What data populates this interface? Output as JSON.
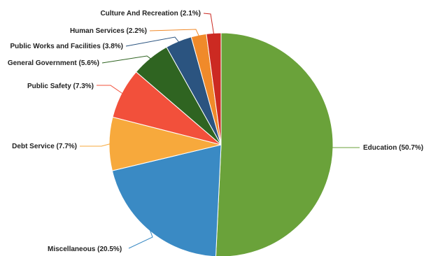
{
  "chart_data": {
    "type": "pie",
    "slices": [
      {
        "label": "Education",
        "value": 50.7,
        "display": "Education (50.7%)",
        "color": "#6aa23a"
      },
      {
        "label": "Miscellaneous",
        "value": 20.5,
        "display": "Miscellaneous (20.5%)",
        "color": "#3a8ac4"
      },
      {
        "label": "Debt Service",
        "value": 7.7,
        "display": "Debt Service (7.7%)",
        "color": "#f7a93c"
      },
      {
        "label": "Public Safety",
        "value": 7.3,
        "display": "Public Safety (7.3%)",
        "color": "#f2503b"
      },
      {
        "label": "General Government",
        "value": 5.6,
        "display": "General Government (5.6%)",
        "color": "#2f6421"
      },
      {
        "label": "Public Works and Facilities",
        "value": 3.8,
        "display": "Public Works and Facilities (3.8%)",
        "color": "#2b5480"
      },
      {
        "label": "Human Services",
        "value": 2.2,
        "display": "Human Services (2.2%)",
        "color": "#f08a2a"
      },
      {
        "label": "Culture And Recreation",
        "value": 2.1,
        "display": "Culture And Recreation (2.1%)",
        "color": "#cc2a22"
      }
    ]
  }
}
